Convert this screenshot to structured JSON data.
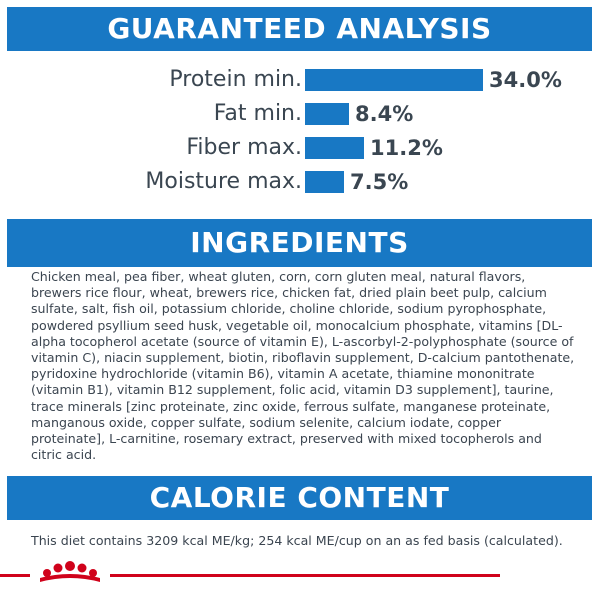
{
  "sections": {
    "analysis_title": "GUARANTEED ANALYSIS",
    "ingredients_title": "INGREDIENTS",
    "calorie_title": "CALORIE CONTENT"
  },
  "chart_data": {
    "type": "bar",
    "orientation": "horizontal",
    "categories": [
      "Protein min.",
      "Fat min.",
      "Fiber max.",
      "Moisture max."
    ],
    "values": [
      34.0,
      8.4,
      11.2,
      7.5
    ],
    "value_labels": [
      "34.0%",
      "8.4%",
      "11.2%",
      "7.5%"
    ],
    "unit": "%",
    "bar_color": "#1878c4",
    "grid": false
  },
  "ingredients": {
    "text": "Chicken meal, pea fiber, wheat gluten, corn, corn gluten meal, natural flavors, brewers rice flour, wheat, brewers rice, chicken fat, dried plain beet pulp, calcium sulfate, salt, fish oil, potassium chloride, choline chloride, sodium pyrophosphate, powdered psyllium seed husk, vegetable oil, monocalcium phosphate, vitamins [DL-alpha tocopherol acetate (source of vitamin E), L-ascorbyl-2-polyphosphate (source of vitamin C), niacin supplement, biotin, riboflavin supplement, D-calcium pantothenate, pyridoxine hydrochloride (vitamin B6), vitamin A acetate, thiamine mononitrate (vitamin B1), vitamin B12 supplement, folic acid, vitamin D3 supplement], taurine, trace minerals [zinc proteinate, zinc oxide, ferrous sulfate, manganese proteinate, manganous oxide, copper sulfate, sodium selenite, calcium iodate, copper proteinate], L-carnitine, rosemary extract, preserved with mixed tocopherols and citric acid."
  },
  "calorie": {
    "text": "This diet contains 3209 kcal ME/kg; 254 kcal ME/cup on an as fed basis (calculated)."
  },
  "colors": {
    "brand_blue": "#1878c4",
    "brand_red": "#d0021b",
    "text": "#3b4550"
  },
  "icons": {
    "footer_logo": "crown-logo-icon"
  }
}
